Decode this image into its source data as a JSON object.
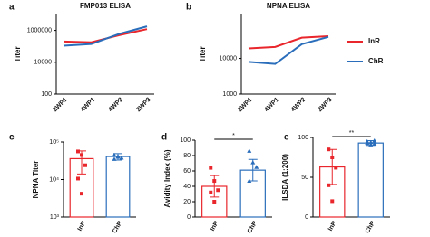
{
  "chart_data": [
    {
      "type": "line",
      "panel": "a",
      "title": "FMP013 ELISA",
      "y_label": "Titer",
      "log_y": true,
      "categories": [
        "2WP1",
        "4WP1",
        "4WP2",
        "2WP3"
      ],
      "ylim": [
        100,
        10000000
      ],
      "yticks": [
        100,
        10000,
        1000000
      ],
      "series": [
        {
          "color": "#e8262c",
          "values": [
            200000,
            180000,
            500000,
            1200000
          ]
        },
        {
          "color": "#2a6ebb",
          "values": [
            110000,
            140000,
            600000,
            1800000
          ]
        }
      ]
    },
    {
      "type": "line",
      "panel": "b",
      "title": "NPNA ELISA",
      "y_label": "Titer",
      "log_y": true,
      "categories": [
        "2WP1",
        "4WP1",
        "4WP2",
        "2WP3"
      ],
      "ylim": [
        1000,
        170000
      ],
      "yticks": [
        1000,
        10000
      ],
      "legend": "right",
      "series": [
        {
          "name": "InR",
          "color": "#e8262c",
          "values": [
            19000,
            21000,
            38000,
            42000
          ]
        },
        {
          "name": "ChR",
          "color": "#2a6ebb",
          "values": [
            8000,
            7000,
            25000,
            40000
          ]
        }
      ]
    },
    {
      "type": "bar",
      "panel": "c",
      "y_label": "NPNA Titer",
      "log_y": true,
      "categories": [
        "InR",
        "ChR"
      ],
      "colors": [
        "#e8262c",
        "#2a6ebb"
      ],
      "ylim": [
        1000,
        100000
      ],
      "yticks": [
        {
          "value": 1000,
          "label": "10³"
        },
        {
          "value": 10000,
          "label": "10⁴"
        },
        {
          "value": 100000,
          "label": "10⁵"
        }
      ],
      "values": [
        36000,
        41000
      ],
      "errors": [
        22000,
        8000
      ],
      "points": [
        [
          56000,
          45000,
          24000,
          10600,
          4200
        ],
        [
          45000,
          40000,
          38000,
          35000,
          42000
        ]
      ]
    },
    {
      "type": "bar",
      "panel": "d",
      "y_label": "Avidity Index (%)",
      "significance": "*",
      "categories": [
        "InR",
        "ChR"
      ],
      "colors": [
        "#e8262c",
        "#2a6ebb"
      ],
      "ylim": [
        0,
        100
      ],
      "yticks": [
        0,
        20,
        40,
        60,
        80,
        100
      ],
      "values": [
        40,
        61
      ],
      "errors": [
        14,
        14
      ],
      "points": [
        [
          64,
          47,
          35,
          32,
          20
        ],
        [
          86,
          71,
          65,
          47
        ]
      ]
    },
    {
      "type": "bar",
      "panel": "e",
      "y_label": "ILSDA (1:200)",
      "significance": "**",
      "categories": [
        "InR",
        "ChR"
      ],
      "colors": [
        "#e8262c",
        "#2a6ebb"
      ],
      "ylim": [
        0,
        100
      ],
      "yticks": [
        0,
        50,
        100
      ],
      "values": [
        63,
        93
      ],
      "errors": [
        22,
        3
      ],
      "points": [
        [
          85,
          75,
          62,
          40,
          20
        ],
        [
          95,
          94,
          92,
          93,
          91,
          96
        ]
      ]
    }
  ]
}
